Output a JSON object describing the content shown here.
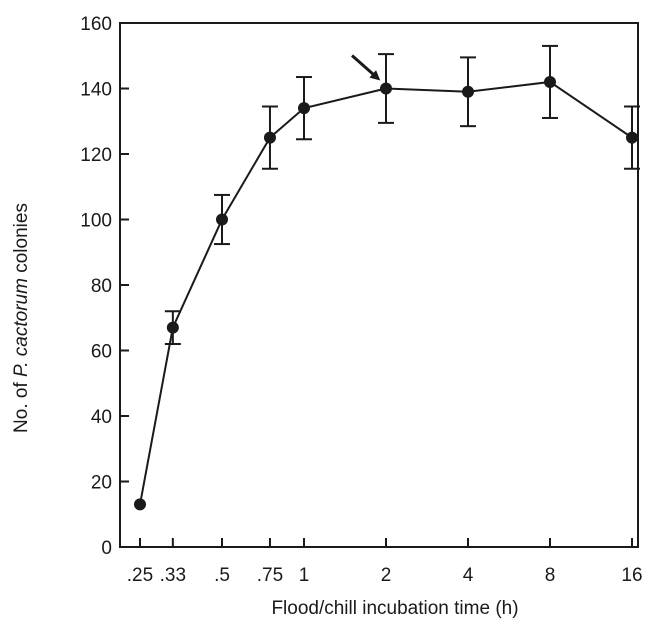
{
  "chart_data": {
    "type": "line",
    "xlabel": "Flood/chill incubation time (h)",
    "ylabel_parts": [
      "No. of ",
      "P. cactorum",
      " colonies"
    ],
    "ylim": [
      0,
      160
    ],
    "yticks": [
      0,
      20,
      40,
      60,
      80,
      100,
      120,
      140,
      160
    ],
    "x_scale": "log",
    "xlim": [
      0.25,
      16
    ],
    "x_tick_values": [
      0.25,
      0.33,
      0.5,
      0.75,
      1,
      2,
      4,
      8,
      16
    ],
    "x_tick_labels": [
      ".25",
      ".33",
      ".5",
      ".75",
      "1",
      "2",
      "4",
      "8",
      "16"
    ],
    "x": [
      0.25,
      0.33,
      0.5,
      0.75,
      1,
      2,
      4,
      8,
      16
    ],
    "series": [
      {
        "values": [
          13,
          67,
          100,
          125,
          134,
          140,
          139,
          142,
          125
        ],
        "error": [
          null,
          5,
          7.5,
          9.5,
          9.5,
          10.5,
          10.5,
          11,
          9.5
        ]
      }
    ],
    "annotations": [
      {
        "type": "arrow",
        "target_x": 2,
        "target_y": 140
      }
    ],
    "grid": false,
    "color": "#1a1a1a"
  }
}
